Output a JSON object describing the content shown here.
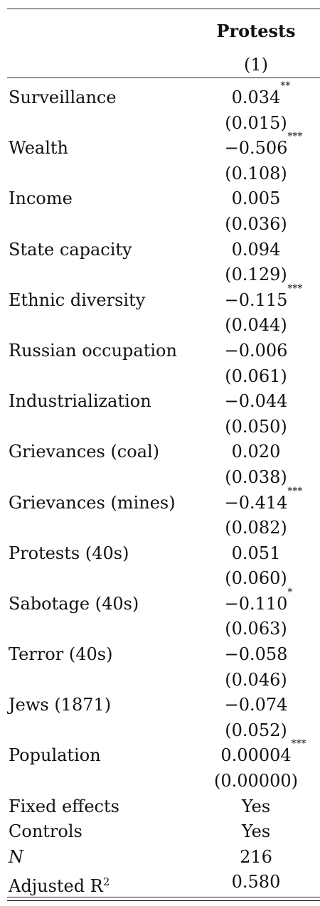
{
  "column": {
    "title": "Protests",
    "number": "(1)"
  },
  "rows": [
    {
      "label": "Surveillance",
      "coef": "0.034",
      "stars": "**",
      "se": "(0.015)"
    },
    {
      "label": "Wealth",
      "coef": "−0.506",
      "stars": "***",
      "se": "(0.108)"
    },
    {
      "label": "Income",
      "coef": "0.005",
      "stars": "",
      "se": "(0.036)"
    },
    {
      "label": "State capacity",
      "coef": "0.094",
      "stars": "",
      "se": "(0.129)"
    },
    {
      "label": "Ethnic diversity",
      "coef": "−0.115",
      "stars": "***",
      "se": "(0.044)"
    },
    {
      "label": "Russian occupation",
      "coef": "−0.006",
      "stars": "",
      "se": "(0.061)"
    },
    {
      "label": "Industrialization",
      "coef": "−0.044",
      "stars": "",
      "se": "(0.050)"
    },
    {
      "label": "Grievances (coal)",
      "coef": "0.020",
      "stars": "",
      "se": "(0.038)"
    },
    {
      "label": "Grievances (mines)",
      "coef": "−0.414",
      "stars": "***",
      "se": "(0.082)"
    },
    {
      "label": "Protests (40s)",
      "coef": "0.051",
      "stars": "",
      "se": "(0.060)"
    },
    {
      "label": "Sabotage (40s)",
      "coef": "−0.110",
      "stars": "*",
      "se": "(0.063)"
    },
    {
      "label": "Terror (40s)",
      "coef": "−0.058",
      "stars": "",
      "se": "(0.046)"
    },
    {
      "label": "Jews (1871)",
      "coef": "−0.074",
      "stars": "",
      "se": "(0.052)"
    },
    {
      "label": "Population",
      "coef": "0.00004",
      "stars": "***",
      "se": "(0.00000)"
    }
  ],
  "stats": [
    {
      "label": "Fixed effects",
      "value": "Yes"
    },
    {
      "label": "Controls",
      "value": "Yes"
    },
    {
      "label": "N",
      "value": "216"
    },
    {
      "label": "Adjusted R",
      "sup": "2",
      "value": "0.580"
    }
  ]
}
